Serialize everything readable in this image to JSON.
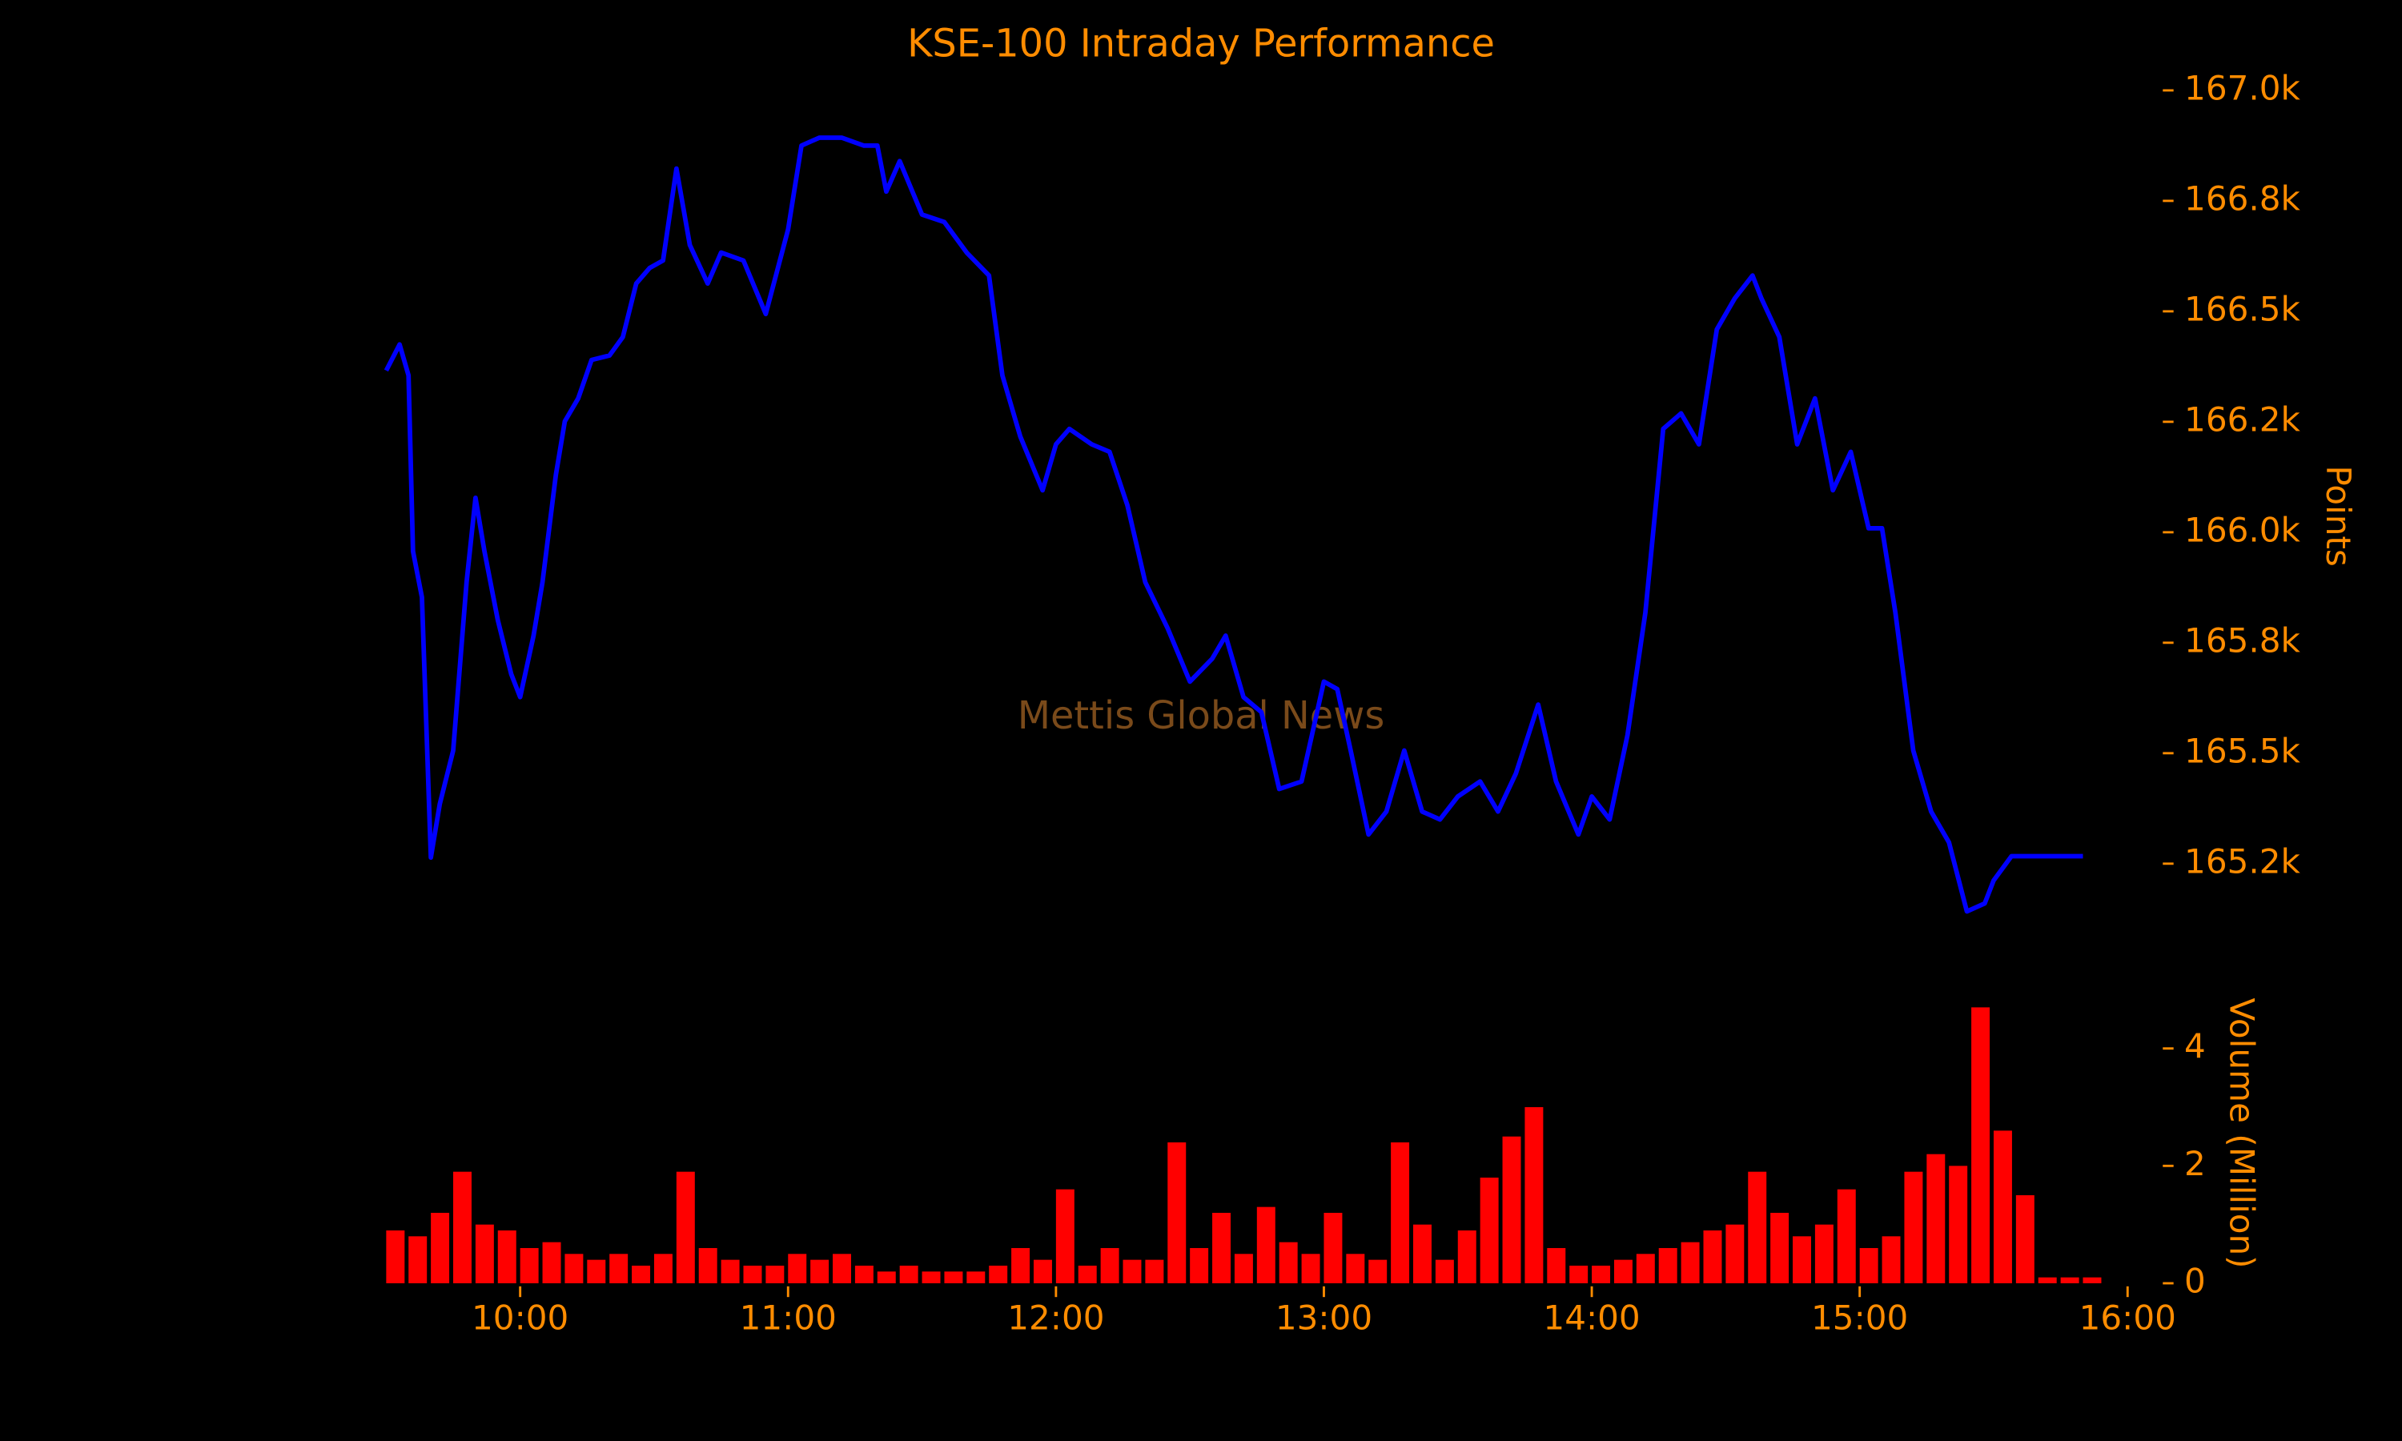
{
  "chart_data": [
    {
      "type": "line",
      "title": "KSE-100 Intraday Performance",
      "watermark": "Mettis Global News",
      "ylabel": "Points",
      "color": "#0000ff",
      "x": [
        "09:30",
        "09:33",
        "09:35",
        "09:36",
        "09:38",
        "09:40",
        "09:42",
        "09:45",
        "09:48",
        "09:50",
        "09:52",
        "09:55",
        "09:58",
        "10:00",
        "10:03",
        "10:05",
        "10:08",
        "10:10",
        "10:13",
        "10:16",
        "10:20",
        "10:23",
        "10:26",
        "10:29",
        "10:32",
        "10:35",
        "10:38",
        "10:42",
        "10:45",
        "10:50",
        "10:55",
        "11:00",
        "11:03",
        "11:07",
        "11:12",
        "11:17",
        "11:20",
        "11:22",
        "11:25",
        "11:30",
        "11:35",
        "11:40",
        "11:45",
        "11:48",
        "11:52",
        "11:57",
        "12:00",
        "12:03",
        "12:08",
        "12:12",
        "12:16",
        "12:20",
        "12:25",
        "12:30",
        "12:35",
        "12:38",
        "12:42",
        "12:46",
        "12:50",
        "12:55",
        "13:00",
        "13:03",
        "13:06",
        "13:10",
        "13:14",
        "13:18",
        "13:22",
        "13:26",
        "13:30",
        "13:35",
        "13:39",
        "13:43",
        "13:48",
        "13:52",
        "13:57",
        "14:00",
        "14:04",
        "14:08",
        "14:12",
        "14:16",
        "14:20",
        "14:24",
        "14:28",
        "14:32",
        "14:36",
        "14:38",
        "14:42",
        "14:46",
        "14:50",
        "14:54",
        "14:58",
        "15:02",
        "15:05",
        "15:08",
        "15:12",
        "15:16",
        "15:20",
        "15:24",
        "15:28",
        "15:30",
        "15:34",
        "15:50"
      ],
      "values": [
        166366,
        166425,
        166355,
        165957,
        165853,
        165264,
        165385,
        165506,
        165887,
        166078,
        165957,
        165801,
        165679,
        165627,
        165766,
        165887,
        166130,
        166251,
        166303,
        166390,
        166400,
        166442,
        166563,
        166598,
        166615,
        166823,
        166650,
        166563,
        166633,
        166615,
        166494,
        166685,
        166875,
        166893,
        166893,
        166875,
        166875,
        166771,
        166840,
        166719,
        166702,
        166633,
        166581,
        166355,
        166217,
        166095,
        166199,
        166234,
        166199,
        166182,
        166061,
        165887,
        165783,
        165662,
        165714,
        165766,
        165627,
        165593,
        165419,
        165436,
        165662,
        165645,
        165506,
        165316,
        165368,
        165506,
        165368,
        165350,
        165402,
        165436,
        165368,
        165454,
        165610,
        165436,
        165316,
        165402,
        165350,
        165541,
        165818,
        166234,
        166269,
        166199,
        166459,
        166529,
        166581,
        166529,
        166442,
        166199,
        166303,
        166095,
        166182,
        166009,
        166009,
        165818,
        165506,
        165368,
        165298,
        165142,
        165160,
        165212,
        165267,
        165267
      ],
      "xlim": [
        "09:30",
        "16:00"
      ],
      "ylim": [
        165050,
        167050
      ],
      "yticks": [
        {
          "value": 165250,
          "label": "165.2k"
        },
        {
          "value": 165500,
          "label": "165.5k"
        },
        {
          "value": 165750,
          "label": "165.8k"
        },
        {
          "value": 166000,
          "label": "166.0k"
        },
        {
          "value": 166250,
          "label": "166.2k"
        },
        {
          "value": 166500,
          "label": "166.5k"
        },
        {
          "value": 166750,
          "label": "166.8k"
        },
        {
          "value": 167000,
          "label": "167.0k"
        }
      ]
    },
    {
      "type": "bar",
      "ylabel": "Volume (Million)",
      "color": "#ff0000",
      "x": [
        "09:30",
        "09:35",
        "09:40",
        "09:45",
        "09:50",
        "09:55",
        "10:00",
        "10:05",
        "10:10",
        "10:15",
        "10:20",
        "10:25",
        "10:30",
        "10:35",
        "10:40",
        "10:45",
        "10:50",
        "10:55",
        "11:00",
        "11:05",
        "11:10",
        "11:15",
        "11:20",
        "11:25",
        "11:30",
        "11:35",
        "11:40",
        "11:45",
        "11:50",
        "11:55",
        "12:00",
        "12:05",
        "12:10",
        "12:15",
        "12:20",
        "12:25",
        "12:30",
        "12:35",
        "12:40",
        "12:45",
        "12:50",
        "12:55",
        "13:00",
        "13:05",
        "13:10",
        "13:15",
        "13:20",
        "13:25",
        "13:30",
        "13:35",
        "13:40",
        "13:45",
        "13:50",
        "13:55",
        "14:00",
        "14:05",
        "14:10",
        "14:15",
        "14:20",
        "14:25",
        "14:30",
        "14:35",
        "14:40",
        "14:45",
        "14:50",
        "14:55",
        "15:00",
        "15:05",
        "15:10",
        "15:15",
        "15:20",
        "15:25",
        "15:30",
        "15:35",
        "15:40",
        "15:45",
        "15:50"
      ],
      "values": [
        0.9,
        0.8,
        1.2,
        1.9,
        1.0,
        0.9,
        0.6,
        0.7,
        0.5,
        0.4,
        0.5,
        0.3,
        0.5,
        1.9,
        0.6,
        0.4,
        0.3,
        0.3,
        0.5,
        0.4,
        0.5,
        0.3,
        0.2,
        0.3,
        0.2,
        0.2,
        0.2,
        0.3,
        0.6,
        0.4,
        1.6,
        0.3,
        0.6,
        0.4,
        0.4,
        2.4,
        0.6,
        1.2,
        0.5,
        1.3,
        0.7,
        0.5,
        1.2,
        0.5,
        0.4,
        2.4,
        1.0,
        0.4,
        0.9,
        1.8,
        2.5,
        3.0,
        0.6,
        0.3,
        0.3,
        0.4,
        0.5,
        0.6,
        0.7,
        0.9,
        1.0,
        1.9,
        1.2,
        0.8,
        1.0,
        1.6,
        0.6,
        0.8,
        1.9,
        2.2,
        2.0,
        4.7,
        2.6,
        1.5,
        0.1,
        0.1,
        0.1
      ],
      "xlim": [
        "09:30",
        "16:00"
      ],
      "ylim": [
        0,
        4.8
      ],
      "yticks": [
        0,
        2,
        4
      ],
      "xticks": [
        "10:00",
        "11:00",
        "12:00",
        "13:00",
        "14:00",
        "15:00",
        "16:00"
      ]
    }
  ]
}
